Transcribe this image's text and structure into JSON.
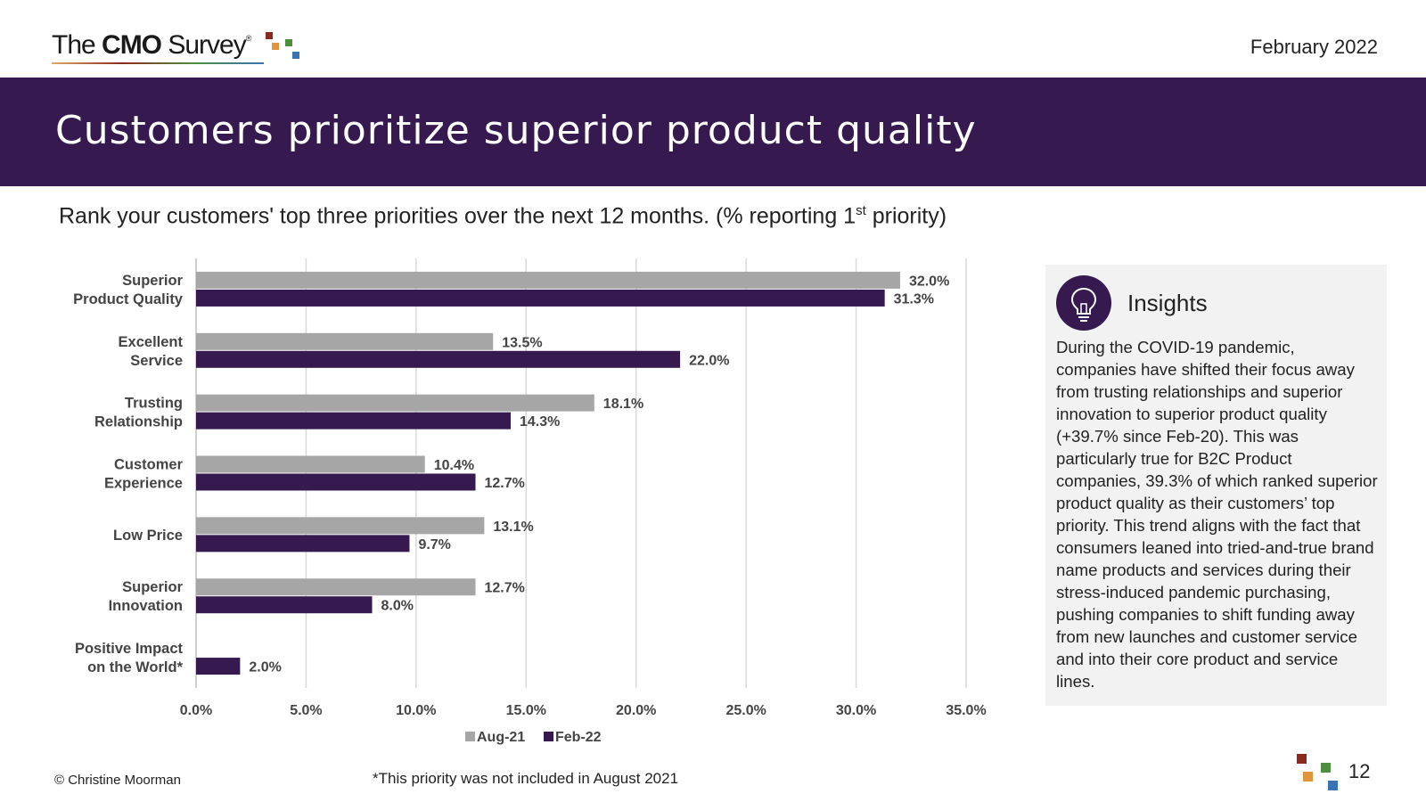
{
  "header": {
    "logo": {
      "pre": "The ",
      "bold": "CMO",
      "post": " Survey",
      "reg": "®"
    },
    "date": "February 2022"
  },
  "banner": {
    "title": "Customers prioritize superior product quality"
  },
  "question": {
    "text": "Rank your customers' top three priorities over the next 12 months. (% reporting 1",
    "sup": "st",
    "suffix": " priority)"
  },
  "colors": {
    "aug": "#a6a6a6",
    "feb": "#35194f",
    "banner": "#35194f",
    "grid": "#d9d9d9",
    "square_red": "#8b2a1c",
    "square_orange": "#e0943e",
    "square_green": "#4d8f3e",
    "square_blue": "#3a73b4"
  },
  "chart_data": {
    "type": "bar",
    "orientation": "horizontal",
    "categories": [
      [
        "Superior",
        "Product Quality"
      ],
      [
        "Excellent",
        "Service"
      ],
      [
        "Trusting",
        "Relationship"
      ],
      [
        "Customer",
        "Experience"
      ],
      [
        "Low Price"
      ],
      [
        "Superior",
        "Innovation"
      ],
      [
        "Positive Impact",
        "on the World*"
      ]
    ],
    "series": [
      {
        "name": "Aug-21",
        "values": [
          32.0,
          13.5,
          18.1,
          10.4,
          13.1,
          12.7,
          null
        ],
        "labels": [
          "32.0%",
          "13.5%",
          "18.1%",
          "10.4%",
          "13.1%",
          "12.7%",
          ""
        ]
      },
      {
        "name": "Feb-22",
        "values": [
          31.3,
          22.0,
          14.3,
          12.7,
          9.7,
          8.0,
          2.0
        ],
        "labels": [
          "31.3%",
          "22.0%",
          "14.3%",
          "12.7%",
          "9.7%",
          "8.0%",
          "2.0%"
        ]
      }
    ],
    "x_ticks": [
      "0.0%",
      "5.0%",
      "10.0%",
      "15.0%",
      "20.0%",
      "25.0%",
      "30.0%",
      "35.0%"
    ],
    "xlim": [
      0,
      35
    ],
    "grid": true,
    "legend": "bottom"
  },
  "insights": {
    "title": "Insights",
    "body": "During the COVID-19 pandemic, companies have shifted their focus away from trusting relationships and superior innovation to superior product quality (+39.7% since Feb-20). This was particularly true for B2C Product companies, 39.3% of which ranked superior product quality as their customers’ top priority. This trend aligns with the fact that consumers leaned into tried-and-true brand name products and services during their stress-induced pandemic purchasing, pushing companies to shift funding away from new launches and customer service and into their core product and service lines."
  },
  "footer": {
    "copyright": "© Christine Moorman",
    "footnote": "*This priority was not included in August 2021",
    "page": "12"
  }
}
